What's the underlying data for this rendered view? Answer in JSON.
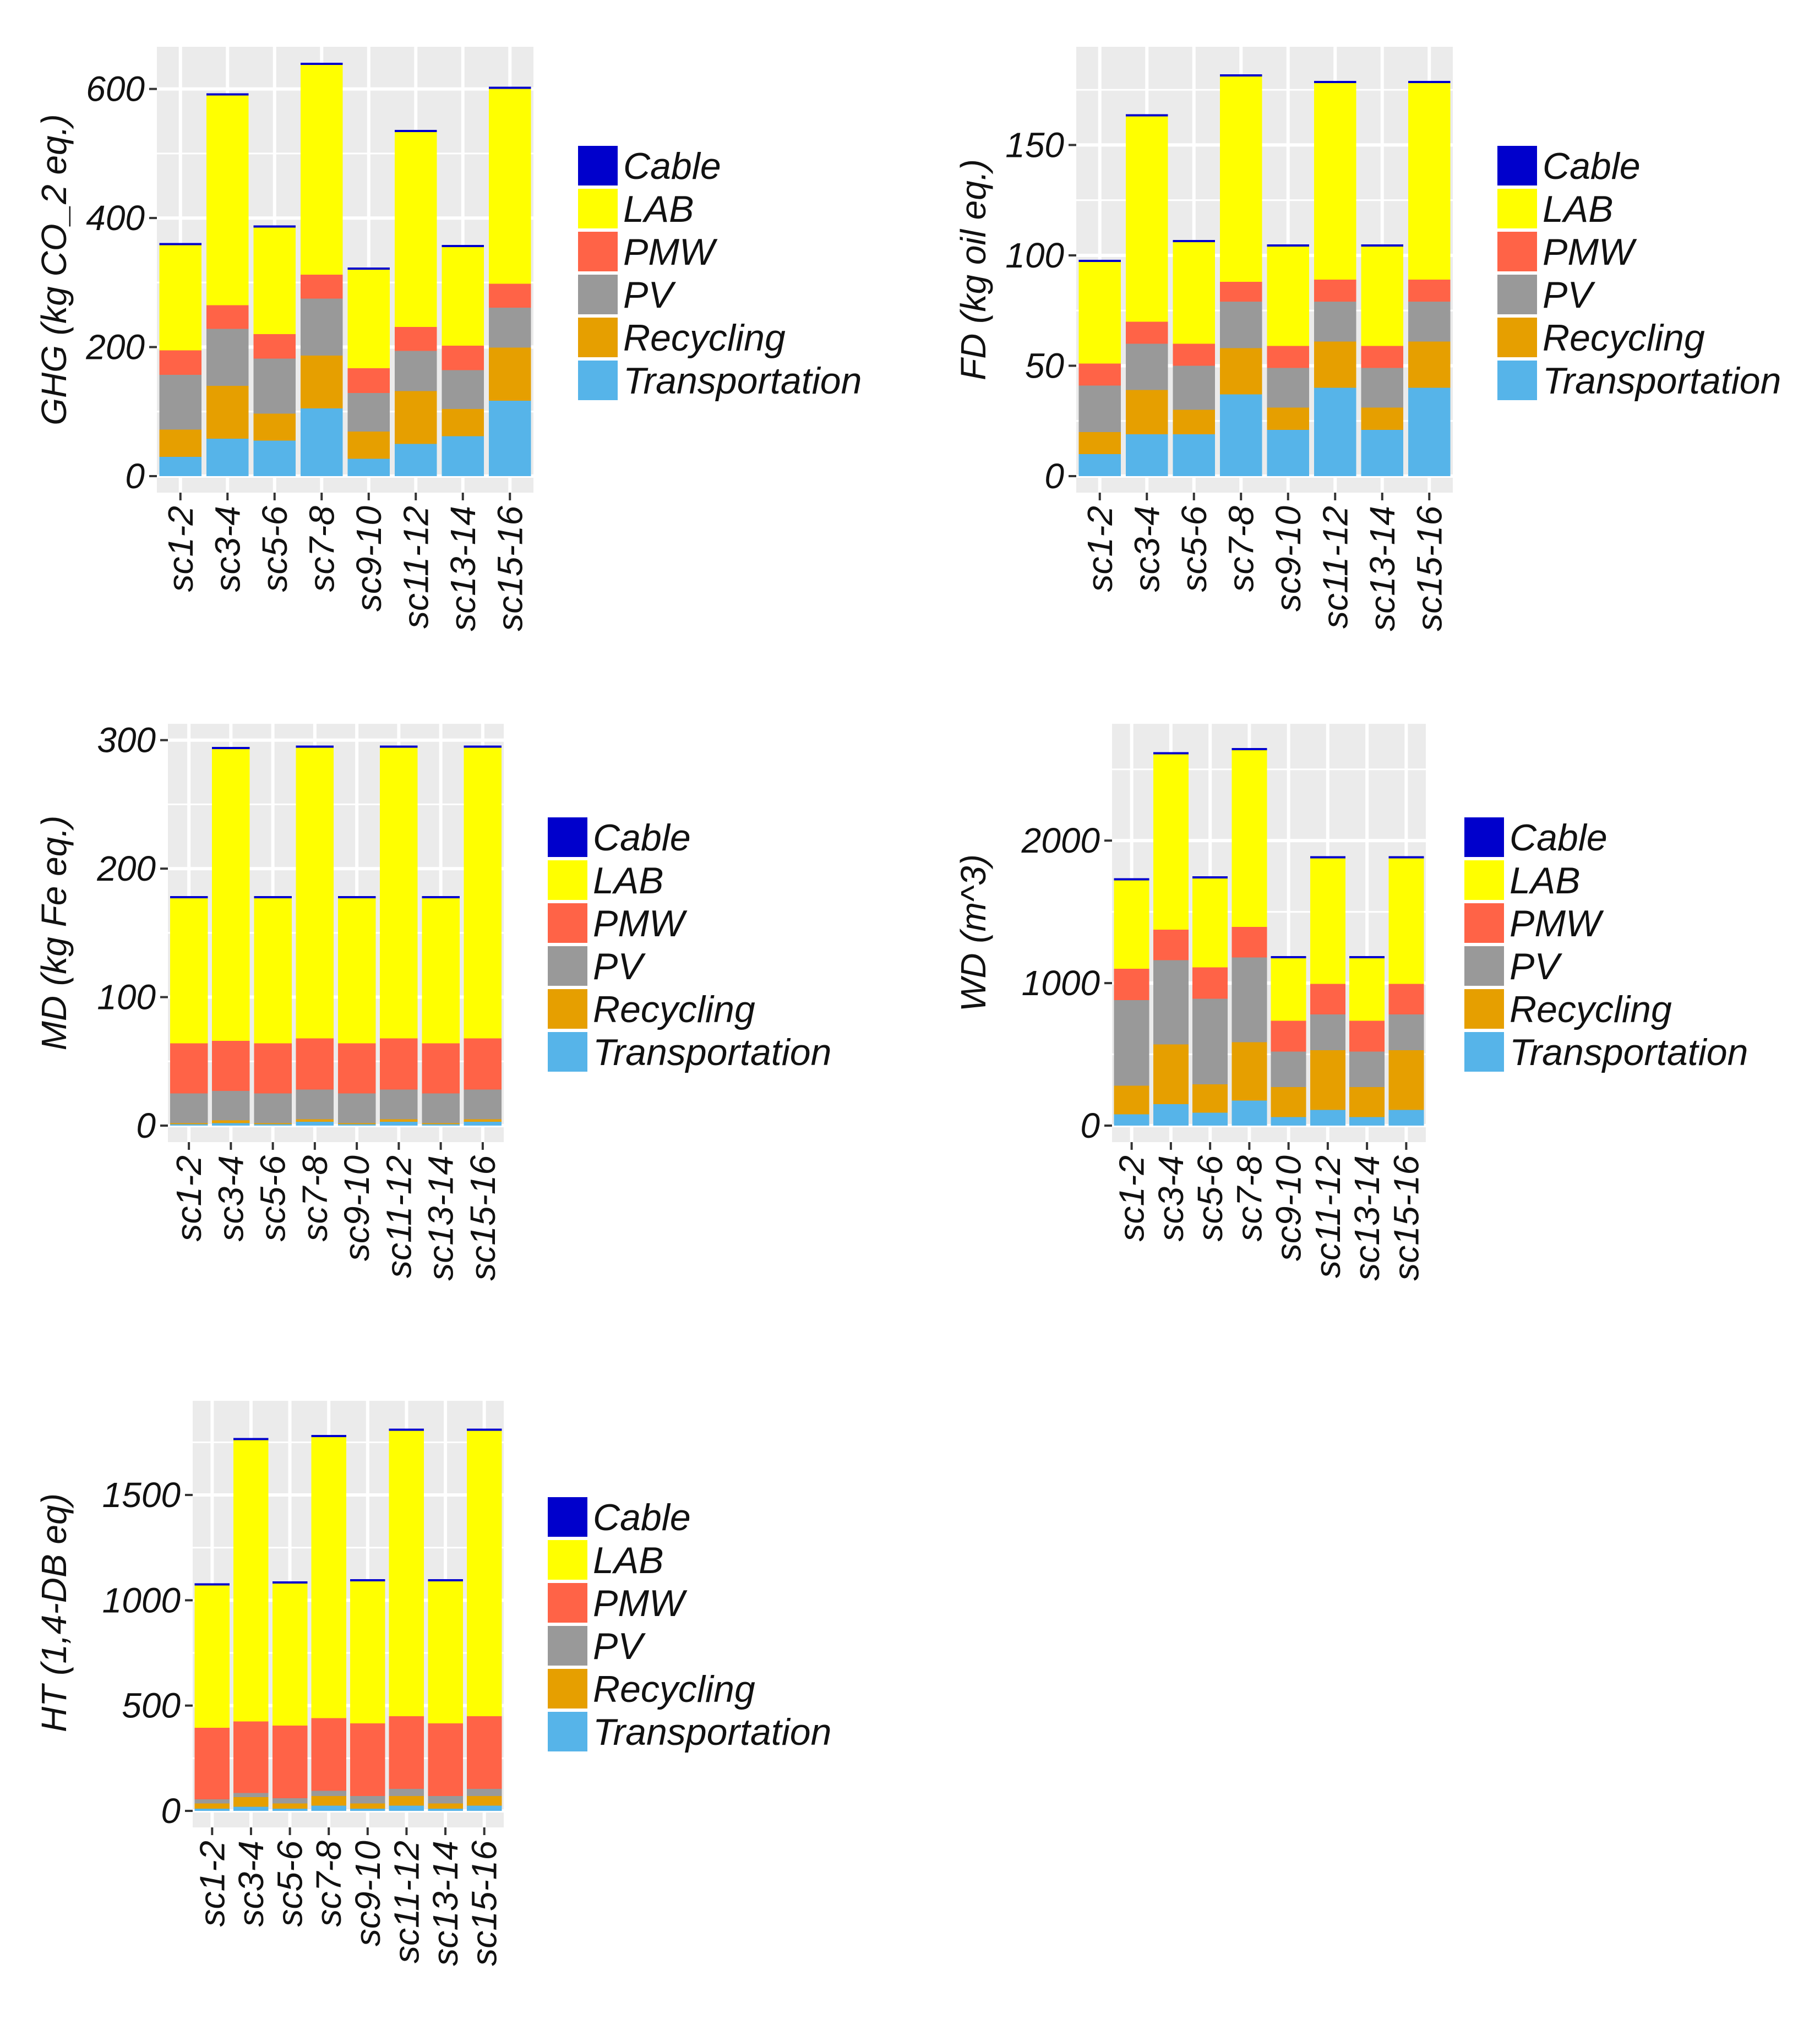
{
  "legend": {
    "entries": [
      "Cable",
      "LAB",
      "PMW",
      "PV",
      "Recycling",
      "Transportation"
    ]
  },
  "colors": {
    "Cable": "#0000CC",
    "LAB": "#FFFF00",
    "PMW": "#FF6347",
    "PV": "#999999",
    "Recycling": "#E69F00",
    "Transportation": "#56B4E9",
    "panel": "#EBEBEB"
  },
  "chart_data": [
    {
      "id": "ghg",
      "type": "bar",
      "stacked": true,
      "ylabel": "GHG (kg CO_2 eq.)",
      "xlabel": "",
      "ylim": [
        0,
        650
      ],
      "yticks": [
        0,
        200,
        400,
        600
      ],
      "grid": true,
      "legend_position": "right",
      "categories": [
        "sc1-2",
        "sc3-4",
        "sc5-6",
        "sc7-8",
        "sc9-10",
        "sc11-12",
        "sc13-14",
        "sc15-16"
      ],
      "series": [
        {
          "name": "Transportation",
          "values": [
            30,
            58,
            55,
            105,
            27,
            50,
            62,
            117
          ]
        },
        {
          "name": "Recycling",
          "values": [
            42,
            82,
            42,
            82,
            42,
            82,
            42,
            82
          ]
        },
        {
          "name": "PV",
          "values": [
            85,
            88,
            85,
            88,
            60,
            62,
            60,
            62
          ]
        },
        {
          "name": "PMW",
          "values": [
            38,
            37,
            38,
            37,
            38,
            37,
            38,
            37
          ]
        },
        {
          "name": "LAB",
          "values": [
            163,
            325,
            165,
            325,
            153,
            302,
            153,
            302
          ]
        },
        {
          "name": "Cable",
          "values": [
            1,
            3,
            1,
            3,
            1,
            3,
            1,
            3
          ]
        }
      ]
    },
    {
      "id": "fd",
      "type": "bar",
      "stacked": true,
      "ylabel": "FD (kg oil eq.)",
      "xlabel": "",
      "ylim": [
        0,
        190
      ],
      "yticks": [
        0,
        50,
        100,
        150
      ],
      "grid": true,
      "legend_position": "right",
      "categories": [
        "sc1-2",
        "sc3-4",
        "sc5-6",
        "sc7-8",
        "sc9-10",
        "sc11-12",
        "sc13-14",
        "sc15-16"
      ],
      "series": [
        {
          "name": "Transportation",
          "values": [
            10,
            19,
            19,
            37,
            21,
            40,
            21,
            40
          ]
        },
        {
          "name": "Recycling",
          "values": [
            10,
            20,
            11,
            21,
            10,
            21,
            10,
            21
          ]
        },
        {
          "name": "PV",
          "values": [
            21,
            21,
            20,
            21,
            18,
            18,
            18,
            18
          ]
        },
        {
          "name": "PMW",
          "values": [
            10,
            10,
            10,
            9,
            10,
            10,
            10,
            10
          ]
        },
        {
          "name": "LAB",
          "values": [
            46,
            93,
            46,
            93,
            45,
            89,
            45,
            89
          ]
        },
        {
          "name": "Cable",
          "values": [
            0.5,
            1,
            0.5,
            1,
            0.5,
            1,
            0.5,
            1
          ]
        }
      ]
    },
    {
      "id": "md",
      "type": "bar",
      "stacked": true,
      "ylabel": "MD (kg Fe eq.)",
      "xlabel": "",
      "ylim": [
        0,
        305
      ],
      "yticks": [
        0,
        100,
        200,
        300
      ],
      "grid": true,
      "legend_position": "right",
      "categories": [
        "sc1-2",
        "sc3-4",
        "sc5-6",
        "sc7-8",
        "sc9-10",
        "sc11-12",
        "sc13-14",
        "sc15-16"
      ],
      "series": [
        {
          "name": "Transportation",
          "values": [
            1,
            2,
            1,
            3,
            1,
            3,
            1,
            3
          ]
        },
        {
          "name": "Recycling",
          "values": [
            1,
            2,
            1,
            2,
            1,
            2,
            1,
            2
          ]
        },
        {
          "name": "PV",
          "values": [
            23,
            23,
            23,
            23,
            23,
            23,
            23,
            23
          ]
        },
        {
          "name": "PMW",
          "values": [
            39,
            39,
            39,
            40,
            39,
            40,
            39,
            40
          ]
        },
        {
          "name": "LAB",
          "values": [
            113,
            227,
            113,
            226,
            113,
            226,
            113,
            226
          ]
        },
        {
          "name": "Cable",
          "values": [
            1,
            1,
            1,
            1,
            1,
            1,
            1,
            1
          ]
        }
      ]
    },
    {
      "id": "wd",
      "type": "bar",
      "stacked": true,
      "ylabel": "WD (m^3)",
      "xlabel": "",
      "ylim": [
        0,
        2750
      ],
      "yticks": [
        0,
        1000,
        2000
      ],
      "grid": true,
      "legend_position": "right",
      "categories": [
        "sc1-2",
        "sc3-4",
        "sc5-6",
        "sc7-8",
        "sc9-10",
        "sc11-12",
        "sc13-14",
        "sc15-16"
      ],
      "series": [
        {
          "name": "Transportation",
          "values": [
            80,
            150,
            90,
            175,
            60,
            110,
            60,
            110
          ]
        },
        {
          "name": "Recycling",
          "values": [
            200,
            420,
            200,
            410,
            210,
            420,
            210,
            420
          ]
        },
        {
          "name": "PV",
          "values": [
            600,
            590,
            600,
            595,
            250,
            250,
            250,
            250
          ]
        },
        {
          "name": "PMW",
          "values": [
            220,
            215,
            220,
            215,
            215,
            215,
            215,
            215
          ]
        },
        {
          "name": "LAB",
          "values": [
            620,
            1230,
            625,
            1240,
            440,
            880,
            440,
            880
          ]
        },
        {
          "name": "Cable",
          "values": [
            3,
            5,
            3,
            5,
            3,
            5,
            3,
            5
          ]
        }
      ]
    },
    {
      "id": "ht",
      "type": "bar",
      "stacked": true,
      "ylabel": "HT (1,4-DB eq)",
      "xlabel": "",
      "ylim": [
        0,
        1900
      ],
      "yticks": [
        0,
        500,
        1000,
        1500
      ],
      "grid": true,
      "legend_position": "right",
      "categories": [
        "sc1-2",
        "sc3-4",
        "sc5-6",
        "sc7-8",
        "sc9-10",
        "sc11-12",
        "sc13-14",
        "sc15-16"
      ],
      "series": [
        {
          "name": "Transportation",
          "values": [
            10,
            20,
            10,
            25,
            10,
            25,
            10,
            25
          ]
        },
        {
          "name": "Recycling",
          "values": [
            25,
            45,
            25,
            45,
            25,
            45,
            25,
            45
          ]
        },
        {
          "name": "PV",
          "values": [
            20,
            20,
            25,
            25,
            35,
            35,
            35,
            35
          ]
        },
        {
          "name": "PMW",
          "values": [
            340,
            340,
            345,
            345,
            345,
            345,
            345,
            345
          ]
        },
        {
          "name": "LAB",
          "values": [
            675,
            1335,
            675,
            1335,
            675,
            1355,
            675,
            1355
          ]
        },
        {
          "name": "Cable",
          "values": [
            8,
            8,
            8,
            8,
            8,
            8,
            8,
            8
          ]
        }
      ]
    }
  ]
}
